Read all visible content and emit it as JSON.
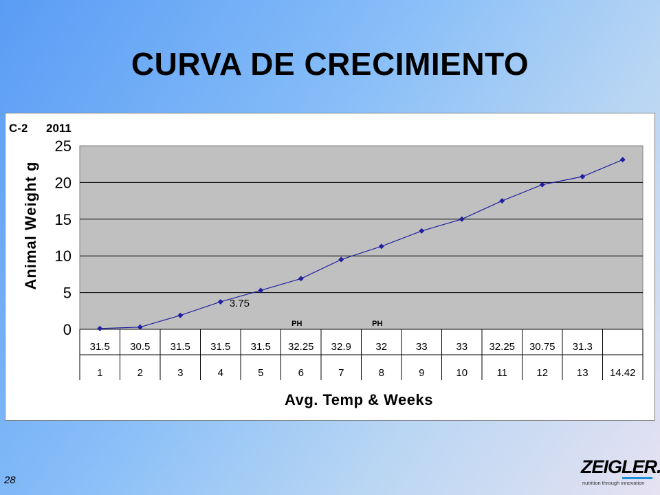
{
  "slide": {
    "title": "CURVA DE CRECIMIENTO",
    "page_number": "28"
  },
  "logo": {
    "word": "ZEIGLER.",
    "tagline": "nutrition through innovation",
    "accent_color": "#1a8fd6"
  },
  "chart_data": {
    "type": "line",
    "corner_label_left": "C-2",
    "corner_label_right": "2011",
    "ylabel": "Animal Weight g",
    "xlabel": "Avg. Temp & Weeks",
    "ylim": [
      0,
      25
    ],
    "yticks": [
      0,
      5,
      10,
      15,
      20,
      25
    ],
    "grid": true,
    "legend": "none",
    "plot_background": "#c0c0c0",
    "line_color": "#1f1fa0",
    "table_rows": {
      "avg_temp": [
        "31.5",
        "30.5",
        "31.5",
        "31.5",
        "31.5",
        "32.25",
        "32.9",
        "32",
        "33",
        "33",
        "32.25",
        "30.75",
        "31.3",
        ""
      ],
      "weeks": [
        "1",
        "2",
        "3",
        "4",
        "5",
        "6",
        "7",
        "8",
        "9",
        "10",
        "11",
        "12",
        "13",
        "14.42"
      ]
    },
    "series": [
      {
        "values": [
          0.1,
          0.3,
          1.9,
          3.75,
          5.3,
          6.9,
          9.5,
          11.3,
          13.4,
          15.0,
          17.5,
          19.7,
          20.8,
          23.1
        ]
      }
    ],
    "data_labels": [
      {
        "index": 3,
        "text": "3.75"
      }
    ],
    "annotations": [
      {
        "index": 5,
        "text": "PH"
      },
      {
        "index": 7,
        "text": "PH"
      }
    ]
  }
}
